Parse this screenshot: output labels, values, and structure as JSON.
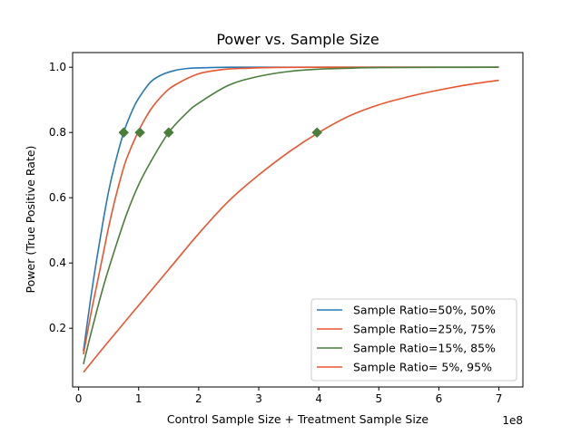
{
  "chart_data": {
    "type": "line",
    "title": "Power vs. Sample Size",
    "xlabel": "Control Sample Size + Treatment Sample Size",
    "ylabel": "Power (True Positive Rate)",
    "x_offset_label": "1e8",
    "xlim": [
      -0.1,
      7.4
    ],
    "ylim": [
      0.02,
      1.045
    ],
    "xticks": [
      0,
      1,
      2,
      3,
      4,
      5,
      6,
      7
    ],
    "yticks": [
      0.2,
      0.4,
      0.6,
      0.8,
      1.0
    ],
    "xtick_labels": [
      "0",
      "1",
      "2",
      "3",
      "4",
      "5",
      "6",
      "7"
    ],
    "ytick_labels": [
      "0.2",
      "0.4",
      "0.6",
      "0.8",
      "1.0"
    ],
    "grid": false,
    "legend_position": "lower-right",
    "series": [
      {
        "name": "Sample Ratio=50%, 50%",
        "color": "#2878b5",
        "x": [
          0.08,
          0.2,
          0.3,
          0.4,
          0.5,
          0.6,
          0.75,
          0.9,
          1.0,
          1.2,
          1.4,
          1.6,
          1.8,
          2.0,
          2.5,
          3.0,
          7.0
        ],
        "y": [
          0.13,
          0.29,
          0.41,
          0.52,
          0.62,
          0.7,
          0.8,
          0.87,
          0.905,
          0.955,
          0.978,
          0.99,
          0.996,
          0.998,
          1.0,
          1.0,
          1.0
        ],
        "marker": {
          "x": 0.75,
          "y": 0.8
        }
      },
      {
        "name": "Sample Ratio=25%, 75%",
        "color": "#e8552f",
        "x": [
          0.08,
          0.2,
          0.3,
          0.4,
          0.5,
          0.6,
          0.7,
          0.8,
          1.0,
          1.2,
          1.4,
          1.6,
          2.0,
          2.4,
          2.8,
          3.2,
          4.0,
          7.0
        ],
        "y": [
          0.12,
          0.24,
          0.33,
          0.42,
          0.51,
          0.59,
          0.66,
          0.72,
          0.805,
          0.87,
          0.915,
          0.945,
          0.98,
          0.993,
          0.997,
          0.999,
          1.0,
          1.0
        ],
        "marker": {
          "x": 1.02,
          "y": 0.8
        }
      },
      {
        "name": "Sample Ratio=15%, 85%",
        "color": "#4b7d3b",
        "x": [
          0.08,
          0.2,
          0.4,
          0.6,
          0.8,
          1.0,
          1.2,
          1.5,
          1.8,
          2.0,
          2.5,
          3.0,
          3.5,
          4.0,
          4.5,
          5.0,
          7.0
        ],
        "y": [
          0.09,
          0.18,
          0.32,
          0.44,
          0.55,
          0.64,
          0.71,
          0.8,
          0.86,
          0.89,
          0.945,
          0.972,
          0.987,
          0.994,
          0.997,
          0.999,
          1.0
        ],
        "marker": {
          "x": 1.5,
          "y": 0.8
        }
      },
      {
        "name": "Sample Ratio= 5%, 95%",
        "color": "#e8552f",
        "x": [
          0.08,
          0.5,
          1.0,
          1.5,
          2.0,
          2.5,
          3.0,
          3.5,
          4.0,
          4.5,
          5.0,
          5.5,
          6.0,
          6.5,
          7.0
        ],
        "y": [
          0.065,
          0.16,
          0.27,
          0.38,
          0.49,
          0.59,
          0.67,
          0.74,
          0.8,
          0.85,
          0.885,
          0.91,
          0.93,
          0.947,
          0.96
        ],
        "marker": {
          "x": 3.97,
          "y": 0.8
        }
      }
    ],
    "marker_style": {
      "shape": "diamond",
      "color": "#4b7d3b"
    }
  }
}
